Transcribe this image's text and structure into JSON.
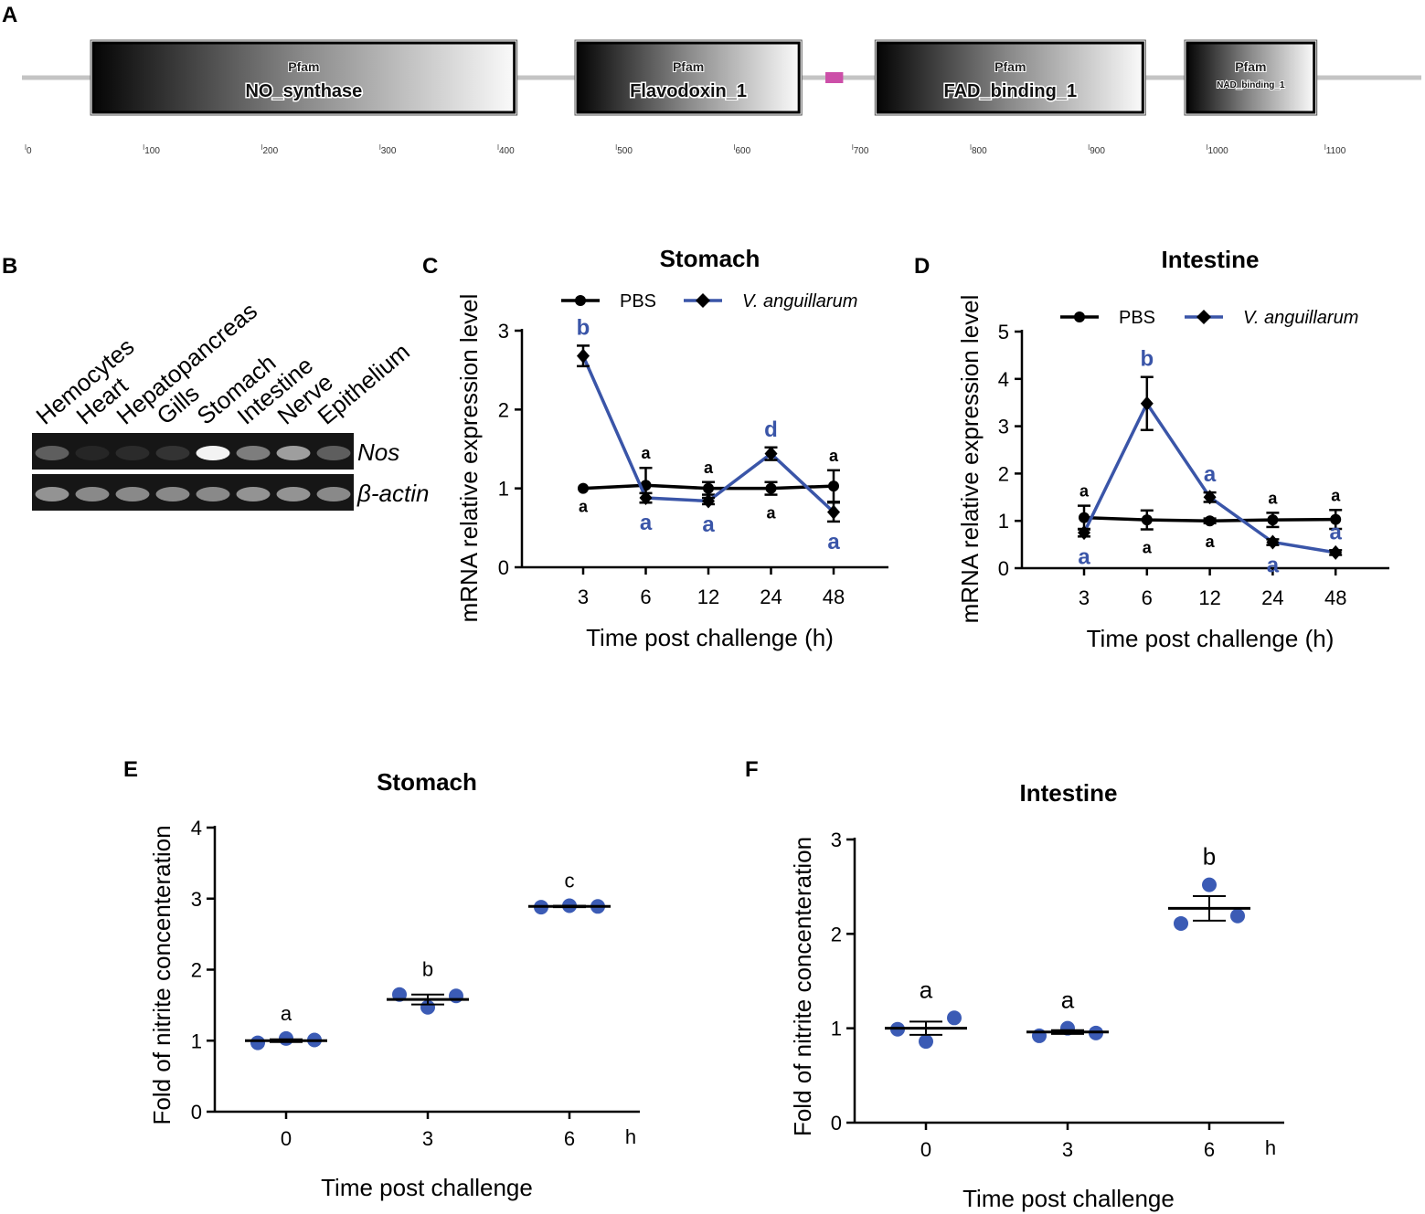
{
  "panels": {
    "A": "A",
    "B": "B",
    "C": "C",
    "D": "D",
    "E": "E",
    "F": "F"
  },
  "colors": {
    "pbs": "#000000",
    "vibrio": "#3a55a8",
    "dots": "#3b5bb5",
    "backbone": "#c4c4c4",
    "motif": "#cc4fa8"
  },
  "domain_map": {
    "backbone_range": [
      0,
      1188
    ],
    "ruler_ticks": [
      "0",
      "100",
      "200",
      "300",
      "400",
      "500",
      "600",
      "700",
      "800",
      "900",
      "1000",
      "1100"
    ],
    "domains": [
      {
        "tag": "Pfam",
        "name": "NO_synthase",
        "start": 55,
        "end": 416,
        "small": false
      },
      {
        "tag": "Pfam",
        "name": "Flavodoxin_1",
        "start": 465,
        "end": 657,
        "small": false
      },
      {
        "tag": "Pfam",
        "name": "FAD_binding_1",
        "start": 719,
        "end": 948,
        "small": false
      },
      {
        "tag": "Pfam",
        "name": "NAD_binding_1",
        "start": 981,
        "end": 1093,
        "small": true
      }
    ],
    "motif": {
      "start": 677,
      "end": 692,
      "color": "#cc4fa8"
    }
  },
  "gel": {
    "lanes": [
      "Hemocytes",
      "Heart",
      "Hepatopancreas",
      "Gills",
      "Stomach",
      "Intestine",
      "Nerve",
      "Epithelium"
    ],
    "genes": [
      "Nos",
      "β-actin"
    ],
    "nos_intensity": [
      0.3,
      0.04,
      0.06,
      0.1,
      1.0,
      0.45,
      0.6,
      0.3
    ],
    "actin_intensity": [
      0.55,
      0.5,
      0.5,
      0.5,
      0.5,
      0.55,
      0.55,
      0.5
    ]
  },
  "chart_data": [
    {
      "id": "C",
      "type": "line",
      "title": "Stomach",
      "xlabel": "Time post challenge (h)",
      "ylabel": "mRNA relative expression level",
      "categories": [
        "3",
        "6",
        "12",
        "24",
        "48"
      ],
      "ylim": [
        0,
        3
      ],
      "yticks": [
        "0",
        "1",
        "2",
        "3"
      ],
      "legend": "top",
      "series": [
        {
          "name": "PBS",
          "italic": false,
          "marker": "circle",
          "values": [
            1.0,
            1.04,
            1.0,
            1.0,
            1.03
          ],
          "errors": [
            0,
            0.22,
            0.08,
            0.08,
            0.2
          ],
          "labels": [
            "a",
            "a",
            "a",
            "a",
            "a"
          ],
          "label_pos": [
            "below",
            "above",
            "above",
            "below",
            "above"
          ]
        },
        {
          "name": "V. anguillarum",
          "italic": true,
          "marker": "diamond",
          "values": [
            2.68,
            0.88,
            0.84,
            1.44,
            0.7
          ],
          "errors": [
            0.13,
            0.06,
            0.04,
            0.08,
            0.12
          ],
          "labels": [
            "b",
            "a",
            "a",
            "d",
            "a"
          ],
          "label_pos": [
            "above",
            "below",
            "below",
            "above",
            "below"
          ]
        }
      ]
    },
    {
      "id": "D",
      "type": "line",
      "title": "Intestine",
      "xlabel": "Time post challenge (h)",
      "ylabel": "mRNA relative expression level",
      "categories": [
        "3",
        "6",
        "12",
        "24",
        "48"
      ],
      "ylim": [
        0,
        5
      ],
      "yticks": [
        "0",
        "1",
        "2",
        "3",
        "4",
        "5"
      ],
      "legend": "top",
      "series": [
        {
          "name": "PBS",
          "italic": false,
          "marker": "circle",
          "values": [
            1.07,
            1.02,
            1.0,
            1.02,
            1.03
          ],
          "errors": [
            0.25,
            0.2,
            0.05,
            0.15,
            0.2
          ],
          "labels": [
            "a",
            "a",
            "a",
            "a",
            "a"
          ],
          "label_pos": [
            "above",
            "below",
            "below",
            "above",
            "above"
          ]
        },
        {
          "name": "V. anguillarum",
          "italic": true,
          "marker": "diamond",
          "values": [
            0.75,
            3.48,
            1.5,
            0.55,
            0.33
          ],
          "errors": [
            0.08,
            0.56,
            0.1,
            0.06,
            0.05
          ],
          "labels": [
            "a",
            "b",
            "a",
            "a",
            "a"
          ],
          "label_pos": [
            "below",
            "above",
            "above",
            "below",
            "above"
          ]
        }
      ]
    },
    {
      "id": "E",
      "type": "scatter",
      "title": "Stomach",
      "xlabel": "Time post challenge",
      "ylabel": "Fold of nitrite concenteration",
      "unit": "h",
      "categories": [
        "0",
        "3",
        "6"
      ],
      "ylim": [
        0,
        4
      ],
      "yticks": [
        "0",
        "1",
        "2",
        "3",
        "4"
      ],
      "groups": [
        {
          "x": "0",
          "points": [
            0.97,
            1.03,
            1.01
          ],
          "mean": 1.0,
          "sem": 0.02,
          "label": "a"
        },
        {
          "x": "3",
          "points": [
            1.65,
            1.47,
            1.63
          ],
          "mean": 1.58,
          "sem": 0.07,
          "label": "b"
        },
        {
          "x": "6",
          "points": [
            2.88,
            2.9,
            2.89
          ],
          "mean": 2.89,
          "sem": 0.01,
          "label": "c"
        }
      ]
    },
    {
      "id": "F",
      "type": "scatter",
      "title": "Intestine",
      "xlabel": "Time post challenge",
      "ylabel": "Fold of nitrite concenteration",
      "unit": "h",
      "categories": [
        "0",
        "3",
        "6"
      ],
      "ylim": [
        0,
        3
      ],
      "yticks": [
        "0",
        "1",
        "2",
        "3"
      ],
      "groups": [
        {
          "x": "0",
          "points": [
            0.99,
            0.86,
            1.11
          ],
          "mean": 1.0,
          "sem": 0.07,
          "label": "a"
        },
        {
          "x": "3",
          "points": [
            0.92,
            1.0,
            0.95
          ],
          "mean": 0.96,
          "sem": 0.02,
          "label": "a"
        },
        {
          "x": "6",
          "points": [
            2.11,
            2.52,
            2.19
          ],
          "mean": 2.27,
          "sem": 0.13,
          "label": "b"
        }
      ]
    }
  ]
}
